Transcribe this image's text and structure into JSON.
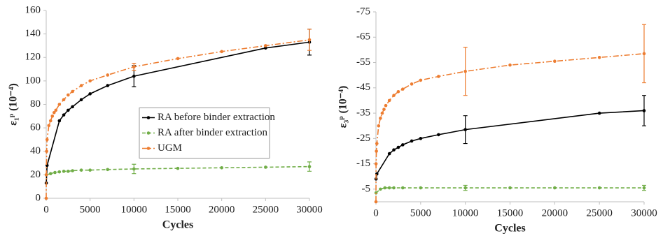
{
  "chart_data": [
    {
      "type": "line",
      "xlabel": "Cycles",
      "ylabel": "ε₁ᵖ (10⁻⁴)",
      "xlim": [
        0,
        30000
      ],
      "xticks": [
        0,
        5000,
        10000,
        15000,
        20000,
        25000,
        30000
      ],
      "ylim": [
        0,
        160
      ],
      "yticks": [
        0,
        20,
        40,
        60,
        80,
        100,
        120,
        140,
        160
      ],
      "legend": "center",
      "series": [
        {
          "name": "RA before binder extraction",
          "color": "#000000",
          "dash": "solid",
          "x": [
            10,
            100,
            1500,
            2000,
            2500,
            3000,
            4000,
            5000,
            7000,
            10000,
            25000,
            30000
          ],
          "values": [
            13,
            28,
            66,
            71,
            75,
            78,
            84,
            89,
            96,
            104,
            128,
            133
          ],
          "errors": [
            null,
            null,
            null,
            null,
            null,
            null,
            null,
            null,
            null,
            9,
            null,
            11
          ]
        },
        {
          "name": "RA after binder extraction",
          "color": "#70ad47",
          "dash": "dashed",
          "x": [
            10,
            500,
            1000,
            1500,
            2000,
            2500,
            3000,
            4000,
            5000,
            7000,
            10000,
            15000,
            20000,
            25000,
            30000
          ],
          "values": [
            20,
            21,
            22,
            22.5,
            23,
            23,
            23.5,
            24,
            24,
            24.5,
            25,
            25.5,
            26,
            26.5,
            27
          ],
          "errors": [
            null,
            null,
            null,
            null,
            null,
            null,
            null,
            null,
            null,
            null,
            4,
            null,
            null,
            null,
            4
          ]
        },
        {
          "name": "UGM",
          "color": "#ed7d31",
          "dash": "dashdot",
          "x": [
            1,
            10,
            50,
            100,
            300,
            500,
            700,
            900,
            1100,
            1500,
            2000,
            2500,
            3000,
            4000,
            5000,
            7000,
            10000,
            15000,
            20000,
            25000,
            30000
          ],
          "values": [
            0,
            20,
            40,
            50,
            62,
            66,
            70,
            73,
            75,
            80,
            84,
            88,
            91,
            96,
            100,
            105,
            112,
            119,
            125,
            130,
            135
          ],
          "errors": [
            null,
            null,
            null,
            null,
            null,
            null,
            null,
            null,
            null,
            null,
            null,
            null,
            null,
            null,
            null,
            null,
            3,
            null,
            null,
            null,
            9
          ]
        }
      ]
    },
    {
      "type": "line",
      "xlabel": "Cycles",
      "ylabel": "ε₃ᵖ (10⁻⁴)",
      "xlim": [
        0,
        30000
      ],
      "xticks": [
        0,
        5000,
        10000,
        15000,
        20000,
        25000,
        30000
      ],
      "ylim": [
        0,
        -75
      ],
      "yticks": [
        -5,
        -15,
        -25,
        -35,
        -45,
        -55,
        -65,
        -75
      ],
      "series": [
        {
          "color": "#000000",
          "dash": "solid",
          "x": [
            10,
            100,
            1500,
            2000,
            2500,
            3000,
            4000,
            5000,
            7000,
            10000,
            25000,
            30000
          ],
          "values": [
            -9,
            -11,
            -19,
            -20.5,
            -21.5,
            -22.5,
            -24,
            -25,
            -26.5,
            -28.5,
            -35,
            -36
          ],
          "errors": [
            null,
            null,
            null,
            null,
            null,
            null,
            null,
            null,
            null,
            5.5,
            null,
            6
          ]
        },
        {
          "color": "#70ad47",
          "dash": "dashed",
          "x": [
            10,
            500,
            1000,
            1500,
            2000,
            3000,
            5000,
            10000,
            15000,
            20000,
            25000,
            30000
          ],
          "values": [
            -3.5,
            -5,
            -5.5,
            -5.5,
            -5.5,
            -5.5,
            -5.5,
            -5.5,
            -5.5,
            -5.5,
            -5.5,
            -5.5
          ],
          "errors": [
            null,
            null,
            null,
            null,
            null,
            null,
            null,
            1,
            null,
            null,
            null,
            1
          ]
        },
        {
          "color": "#ed7d31",
          "dash": "dashdot",
          "x": [
            1,
            10,
            50,
            100,
            300,
            500,
            700,
            900,
            1100,
            1500,
            2000,
            2500,
            3000,
            4000,
            5000,
            7000,
            10000,
            15000,
            20000,
            25000,
            30000
          ],
          "values": [
            0,
            -15,
            -20,
            -23,
            -30,
            -33,
            -35,
            -36.5,
            -38,
            -40,
            -42,
            -43.5,
            -44.5,
            -46.5,
            -48,
            -49.5,
            -51.5,
            -54,
            -55.5,
            -57,
            -58.5
          ],
          "errors": [
            null,
            null,
            null,
            null,
            null,
            null,
            null,
            null,
            null,
            null,
            null,
            null,
            null,
            null,
            null,
            null,
            9.5,
            null,
            null,
            null,
            11.5
          ]
        }
      ]
    }
  ]
}
